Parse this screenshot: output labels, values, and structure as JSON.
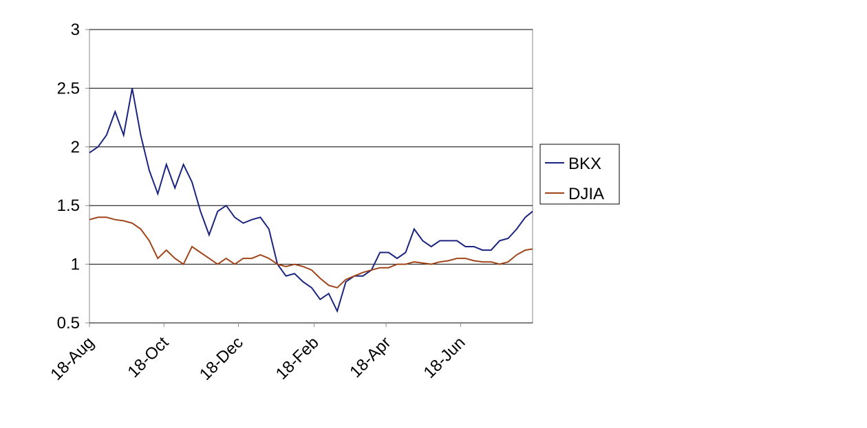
{
  "chart_data": {
    "type": "line",
    "x": [
      "18-Aug",
      "25-Aug",
      "1-Sep",
      "8-Sep",
      "15-Sep",
      "22-Sep",
      "29-Sep",
      "6-Oct",
      "13-Oct",
      "20-Oct",
      "27-Oct",
      "3-Nov",
      "10-Nov",
      "17-Nov",
      "24-Nov",
      "1-Dec",
      "8-Dec",
      "15-Dec",
      "22-Dec",
      "29-Dec",
      "5-Jan",
      "12-Jan",
      "19-Jan",
      "26-Jan",
      "2-Feb",
      "9-Feb",
      "16-Feb",
      "23-Feb",
      "2-Mar",
      "9-Mar",
      "16-Mar",
      "23-Mar",
      "30-Mar",
      "6-Apr",
      "13-Apr",
      "20-Apr",
      "27-Apr",
      "4-May",
      "11-May",
      "18-May",
      "25-May",
      "1-Jun",
      "8-Jun",
      "15-Jun",
      "22-Jun",
      "29-Jun",
      "6-Jul",
      "13-Jul",
      "20-Jul",
      "27-Jul",
      "3-Aug",
      "10-Aug",
      "16-Aug"
    ],
    "series": [
      {
        "name": "BKX",
        "color": "#1a237e",
        "values": [
          1.95,
          2.0,
          2.1,
          2.3,
          2.1,
          2.5,
          2.1,
          1.8,
          1.6,
          1.85,
          1.65,
          1.85,
          1.7,
          1.45,
          1.25,
          1.45,
          1.5,
          1.4,
          1.35,
          1.38,
          1.4,
          1.3,
          1.0,
          0.9,
          0.92,
          0.85,
          0.8,
          0.7,
          0.75,
          0.6,
          0.85,
          0.9,
          0.9,
          0.95,
          1.1,
          1.1,
          1.05,
          1.1,
          1.3,
          1.2,
          1.15,
          1.2,
          1.2,
          1.2,
          1.15,
          1.15,
          1.12,
          1.12,
          1.2,
          1.22,
          1.3,
          1.4,
          1.45
        ]
      },
      {
        "name": "DJIA",
        "color": "#a0441a",
        "values": [
          1.38,
          1.4,
          1.4,
          1.38,
          1.37,
          1.35,
          1.3,
          1.2,
          1.05,
          1.12,
          1.05,
          1.0,
          1.15,
          1.1,
          1.05,
          1.0,
          1.05,
          1.0,
          1.05,
          1.05,
          1.08,
          1.05,
          1.0,
          0.98,
          1.0,
          0.98,
          0.95,
          0.88,
          0.82,
          0.8,
          0.87,
          0.9,
          0.93,
          0.95,
          0.97,
          0.97,
          1.0,
          1.0,
          1.02,
          1.01,
          1.0,
          1.02,
          1.03,
          1.05,
          1.05,
          1.03,
          1.02,
          1.02,
          1.0,
          1.02,
          1.08,
          1.12,
          1.13
        ]
      }
    ],
    "xlim": [
      "18-Aug",
      "16-Aug"
    ],
    "xticks": [
      "18-Aug",
      "18-Oct",
      "18-Dec",
      "18-Feb",
      "18-Apr",
      "18-Jun"
    ],
    "ylim": [
      0.5,
      3
    ],
    "yticks": [
      0.5,
      1,
      1.5,
      2,
      2.5,
      3
    ],
    "grid": true
  }
}
